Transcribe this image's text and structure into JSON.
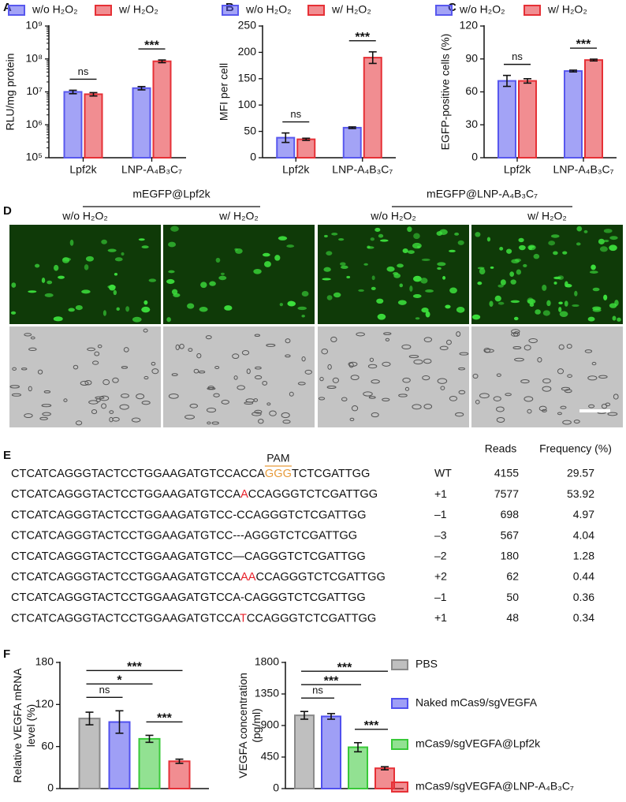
{
  "panels": [
    "A",
    "B",
    "C",
    "D",
    "E",
    "F"
  ],
  "chart_data": [
    {
      "type": "bar",
      "log_scale": true,
      "y_label": "RLU/mg protein",
      "categories": [
        "Lpf2k",
        "LNP-A₄B₃C₇"
      ],
      "series": [
        {
          "name": "w/o H₂O₂",
          "color": "#5858ee",
          "values": [
            10000000,
            13000000
          ],
          "errors": [
            1200000,
            1500000
          ]
        },
        {
          "name": "w/ H₂O₂",
          "color": "#e63036",
          "values": [
            8500000,
            85000000
          ],
          "errors": [
            1000000,
            8000000
          ]
        }
      ],
      "ylim": [
        100000,
        1000000000
      ],
      "yticks": [
        {
          "value": 100000,
          "label": "10⁵"
        },
        {
          "value": 1000000,
          "label": "10⁶"
        },
        {
          "value": 10000000,
          "label": "10⁷"
        },
        {
          "value": 100000000,
          "label": "10⁸"
        },
        {
          "value": 1000000000,
          "label": "10⁹"
        }
      ],
      "brackets": [
        {
          "category": 0,
          "from": 0,
          "to": 1,
          "label": "ns"
        },
        {
          "category": 1,
          "from": 0,
          "to": 1,
          "label": "***"
        }
      ],
      "legend": "top"
    },
    {
      "type": "bar",
      "y_label": "MFI per cell",
      "categories": [
        "Lpf2k",
        "LNP-A₄B₃C₇"
      ],
      "series": [
        {
          "name": "w/o H₂O₂",
          "color": "#5858ee",
          "values": [
            38,
            57
          ],
          "errors": [
            9,
            1.5
          ]
        },
        {
          "name": "w/ H₂O₂",
          "color": "#e63036",
          "values": [
            35,
            190
          ],
          "errors": [
            2,
            11
          ]
        }
      ],
      "ylim": [
        0,
        250
      ],
      "yticks": [
        0,
        50,
        100,
        150,
        200,
        250
      ],
      "brackets": [
        {
          "category": 0,
          "from": 0,
          "to": 1,
          "label": "ns"
        },
        {
          "category": 1,
          "from": 0,
          "to": 1,
          "label": "***"
        }
      ],
      "legend": "top"
    },
    {
      "type": "bar",
      "y_label": "EGFP-positive cells (%)",
      "categories": [
        "Lpf2k",
        "LNP-A₄B₃C₇"
      ],
      "series": [
        {
          "name": "w/o H₂O₂",
          "color": "#5858ee",
          "values": [
            70,
            79
          ],
          "errors": [
            5,
            0.8
          ]
        },
        {
          "name": "w/ H₂O₂",
          "color": "#e63036",
          "values": [
            70,
            89
          ],
          "errors": [
            2,
            0.8
          ]
        }
      ],
      "ylim": [
        0,
        120
      ],
      "yticks": [
        0,
        30,
        60,
        90,
        120
      ],
      "brackets": [
        {
          "category": 0,
          "from": 0,
          "to": 1,
          "label": "ns"
        },
        {
          "category": 1,
          "from": 0,
          "to": 1,
          "label": "***"
        }
      ],
      "legend": "top"
    },
    {
      "type": "bar",
      "y_label": [
        "Relative VEGFA mRNA",
        "level (%)"
      ],
      "categories": [
        null
      ],
      "series": [
        {
          "color": "#8a8a8a",
          "values": [
            100
          ],
          "errors": [
            9
          ]
        },
        {
          "color": "#5050ee",
          "values": [
            95
          ],
          "errors": [
            16
          ]
        },
        {
          "color": "#39c939",
          "values": [
            71
          ],
          "errors": [
            5
          ]
        },
        {
          "color": "#e63036",
          "values": [
            39
          ],
          "errors": [
            3
          ]
        }
      ],
      "ylim": [
        0,
        180
      ],
      "yticks": [
        0,
        60,
        120,
        180
      ],
      "brackets": [
        {
          "category": 0,
          "from": 0,
          "to": 3,
          "label": "***"
        },
        {
          "category": 0,
          "from": 0,
          "to": 2,
          "label": "*"
        },
        {
          "category": 0,
          "from": 0,
          "to": 1,
          "label": "ns"
        },
        {
          "category": 0,
          "from": 2,
          "to": 3,
          "label": "***"
        }
      ]
    },
    {
      "type": "bar",
      "y_label": [
        "VEGFA concentration",
        "(pg/ml)"
      ],
      "categories": [
        null
      ],
      "series": [
        {
          "name": "PBS",
          "color": "#8a8a8a",
          "values": [
            1045
          ],
          "errors": [
            55
          ]
        },
        {
          "name": "Naked mCas9/sgVEGFA",
          "color": "#5050ee",
          "values": [
            1030
          ],
          "errors": [
            40
          ]
        },
        {
          "name": "mCas9/sgVEGFA@Lpf2k",
          "color": "#39c939",
          "values": [
            590
          ],
          "errors": [
            65
          ]
        },
        {
          "name": "mCas9/sgVEGFA@LNP-A₄B₃C₇",
          "color": "#e63036",
          "values": [
            290
          ],
          "errors": [
            22
          ]
        }
      ],
      "ylim": [
        0,
        1800
      ],
      "yticks": [
        0,
        450,
        900,
        1350,
        1800
      ],
      "brackets": [
        {
          "category": 0,
          "from": 0,
          "to": 3,
          "label": "***"
        },
        {
          "category": 0,
          "from": 0,
          "to": 2,
          "label": "***"
        },
        {
          "category": 0,
          "from": 0,
          "to": 1,
          "label": "ns"
        },
        {
          "category": 0,
          "from": 2,
          "to": 3,
          "label": "***"
        }
      ],
      "legend": "right"
    }
  ],
  "microscopy": {
    "groups": [
      "mEGFP@Lpf2k",
      "mEGFP@LNP-A₄B₃C₇"
    ],
    "columns": [
      "w/o H₂O₂",
      "w/ H₂O₂",
      "w/o H₂O₂",
      "w/ H₂O₂"
    ]
  },
  "sequencing": {
    "headers": [
      "Reads",
      "Frequency (%)"
    ],
    "pam_label": "PAM",
    "pam_color": "#e69a3a",
    "highlight_color": "#e8202a",
    "rows": [
      {
        "sequence": [
          "CTCATCAGGGTACTCCTGGAAGATGTCCACCA",
          "GGG",
          "TCTCGATTGG"
        ],
        "change": "WT",
        "reads": 4155,
        "frequency": 29.57
      },
      {
        "sequence": [
          "CTCATCAGGGTACTCCTGGAAGATGTCCA",
          "A",
          "CCAGGGTCTCGATTGG"
        ],
        "change": "+1",
        "reads": 7577,
        "frequency": 53.92
      },
      {
        "sequence": [
          "CTCATCAGGGTACTCCTGGAAGATGTCC-CCAGGGTCTCGATTGG"
        ],
        "change": "–1",
        "reads": 698,
        "frequency": 4.97
      },
      {
        "sequence": [
          "CTCATCAGGGTACTCCTGGAAGATGTCC---AGGGTCTCGATTGG"
        ],
        "change": "–3",
        "reads": 567,
        "frequency": 4.04
      },
      {
        "sequence": [
          "CTCATCAGGGTACTCCTGGAAGATGTCC—CAGGGTCTCGATTGG"
        ],
        "change": "–2",
        "reads": 180,
        "frequency": 1.28
      },
      {
        "sequence": [
          "CTCATCAGGGTACTCCTGGAAGATGTCCA",
          "AA",
          "CCAGGGTCTCGATTGG"
        ],
        "change": "+2",
        "reads": 62,
        "frequency": 0.44
      },
      {
        "sequence": [
          "CTCATCAGGGTACTCCTGGAAGATGTCCA-CAGGGTCTCGATTGG"
        ],
        "change": "–1",
        "reads": 50,
        "frequency": 0.36
      },
      {
        "sequence": [
          "CTCATCAGGGTACTCCTGGAAGATGTCCA",
          "T",
          "CCAGGGTCTCGATTGG"
        ],
        "change": "+1",
        "reads": 48,
        "frequency": 0.34
      }
    ]
  }
}
